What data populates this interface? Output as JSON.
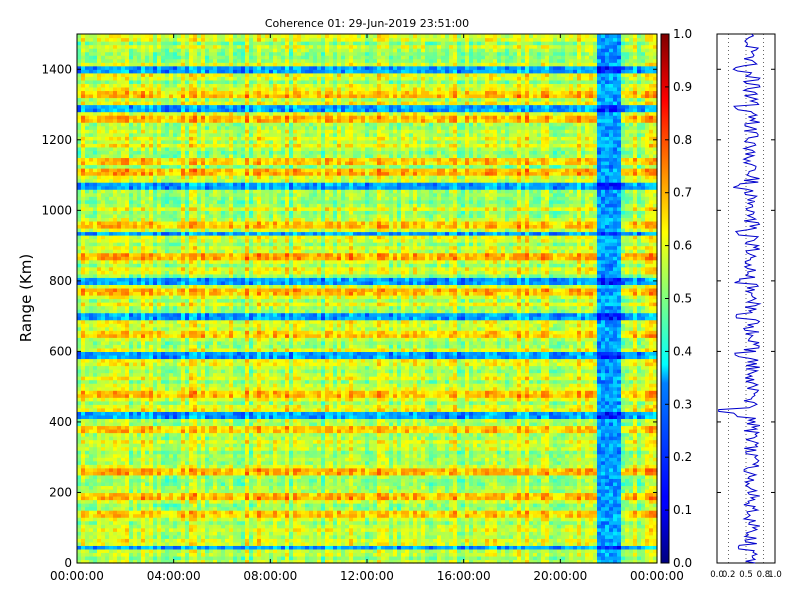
{
  "chart_data": [
    {
      "type": "heatmap",
      "title": "Coherence 01: 29-Jun-2019 23:51:00",
      "ylabel": "Range (Km)",
      "xlabel": "",
      "x_ticks": [
        "00:00:00",
        "04:00:00",
        "08:00:00",
        "12:00:00",
        "16:00:00",
        "20:00:00",
        "00:00:00"
      ],
      "xlim_hours": [
        0,
        24
      ],
      "y_ticks": [
        0,
        200,
        400,
        600,
        800,
        1000,
        1200,
        1400
      ],
      "ylim": [
        0,
        1500
      ],
      "colorscale": "jet",
      "colorbar": {
        "min": 0.0,
        "max": 1.0,
        "ticks": [
          "0.0",
          "0.1",
          "0.2",
          "0.3",
          "0.4",
          "0.5",
          "0.6",
          "0.7",
          "0.8",
          "0.9",
          "1.0"
        ]
      },
      "low_coherence_time_window_hours": [
        21.5,
        22.5
      ],
      "typical_value_range": [
        0.4,
        0.75
      ],
      "low_coherence_range_bands_km": [
        45,
        420,
        590,
        700,
        800,
        935,
        1070,
        1290,
        1400
      ],
      "high_coherence_range_bands_km": [
        140,
        190,
        260,
        380,
        480,
        650,
        770,
        870,
        960,
        1110,
        1140,
        1260,
        1330
      ]
    },
    {
      "type": "line",
      "title": "",
      "x_ticks": [
        "0.0",
        "0.2",
        "0.5",
        "0.8",
        "1.0"
      ],
      "xlim": [
        0,
        1
      ],
      "ylim": [
        0,
        1500
      ],
      "grid": true,
      "line_color": "#0000cc",
      "mean_value": 0.6,
      "min_value": 0.03,
      "min_at_range_km": 430
    }
  ]
}
